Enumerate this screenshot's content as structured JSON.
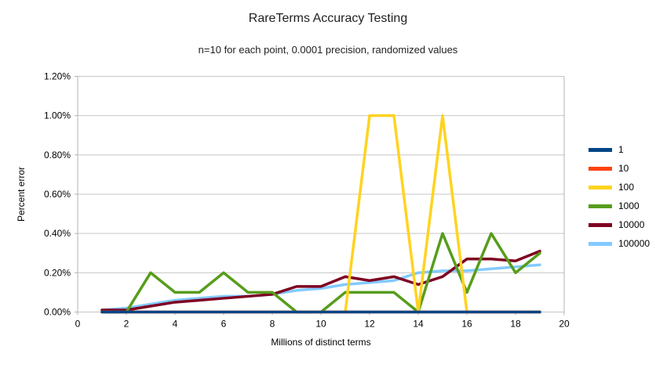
{
  "title": "RareTerms Accuracy Testing",
  "subtitle": "n=10 for each point, 0.0001 precision, randomized values",
  "chart_data": {
    "type": "line",
    "title": "RareTerms Accuracy Testing",
    "subtitle": "n=10 for each point, 0.0001 precision, randomized values",
    "xlabel": "Millions of distinct terms",
    "ylabel": "Percent error",
    "xlim": [
      0,
      20
    ],
    "ylim": [
      0,
      1.2
    ],
    "x_ticks": [
      0,
      2,
      4,
      6,
      8,
      10,
      12,
      14,
      16,
      18,
      20
    ],
    "y_ticks": [
      "0.00%",
      "0.20%",
      "0.40%",
      "0.60%",
      "0.80%",
      "1.00%",
      "1.20%"
    ],
    "y_tick_values": [
      0,
      0.2,
      0.4,
      0.6,
      0.8,
      1.0,
      1.2
    ],
    "grid": true,
    "legend_position": "right",
    "x": [
      1,
      2,
      3,
      4,
      5,
      6,
      7,
      8,
      9,
      10,
      11,
      12,
      13,
      14,
      15,
      16,
      17,
      18,
      19
    ],
    "series": [
      {
        "name": "1",
        "color": "#004586",
        "values": [
          0,
          0,
          0,
          0,
          0,
          0,
          0,
          0,
          0,
          0,
          0,
          0,
          0,
          0,
          0,
          0,
          0,
          0,
          0
        ]
      },
      {
        "name": "10",
        "color": "#FF420E",
        "values": [
          0,
          0,
          0,
          0,
          0,
          0,
          0,
          0,
          0,
          0,
          0,
          0,
          0,
          0,
          0,
          0,
          0,
          0,
          0
        ]
      },
      {
        "name": "100",
        "color": "#FFD320",
        "values": [
          0,
          0,
          0,
          0,
          0,
          0,
          0,
          0,
          0,
          0,
          0,
          1.0,
          1.0,
          0,
          1.0,
          0,
          0,
          0,
          0
        ]
      },
      {
        "name": "1000",
        "color": "#579D1C",
        "values": [
          0,
          0,
          0.2,
          0.1,
          0.1,
          0.2,
          0.1,
          0.1,
          0,
          0,
          0.1,
          0.1,
          0.1,
          0,
          0.4,
          0.1,
          0.4,
          0.2,
          0.3
        ]
      },
      {
        "name": "10000",
        "color": "#7E0021",
        "values": [
          0.01,
          0.01,
          0.03,
          0.05,
          0.06,
          0.07,
          0.08,
          0.09,
          0.13,
          0.13,
          0.18,
          0.16,
          0.18,
          0.14,
          0.18,
          0.27,
          0.27,
          0.26,
          0.31
        ]
      },
      {
        "name": "100000",
        "color": "#83CAFF",
        "values": [
          0.01,
          0.02,
          0.04,
          0.06,
          0.07,
          0.08,
          0.08,
          0.09,
          0.11,
          0.12,
          0.14,
          0.15,
          0.16,
          0.2,
          0.21,
          0.21,
          0.22,
          0.23,
          0.24
        ]
      }
    ],
    "draw_order": [
      5,
      4,
      3,
      2,
      1,
      0
    ]
  },
  "style": {
    "grid_color": "#c6c6c6",
    "axis_color": "#b3b3b3",
    "tick_text_color": "#000000",
    "background": "#ffffff",
    "line_width": 3.5
  }
}
